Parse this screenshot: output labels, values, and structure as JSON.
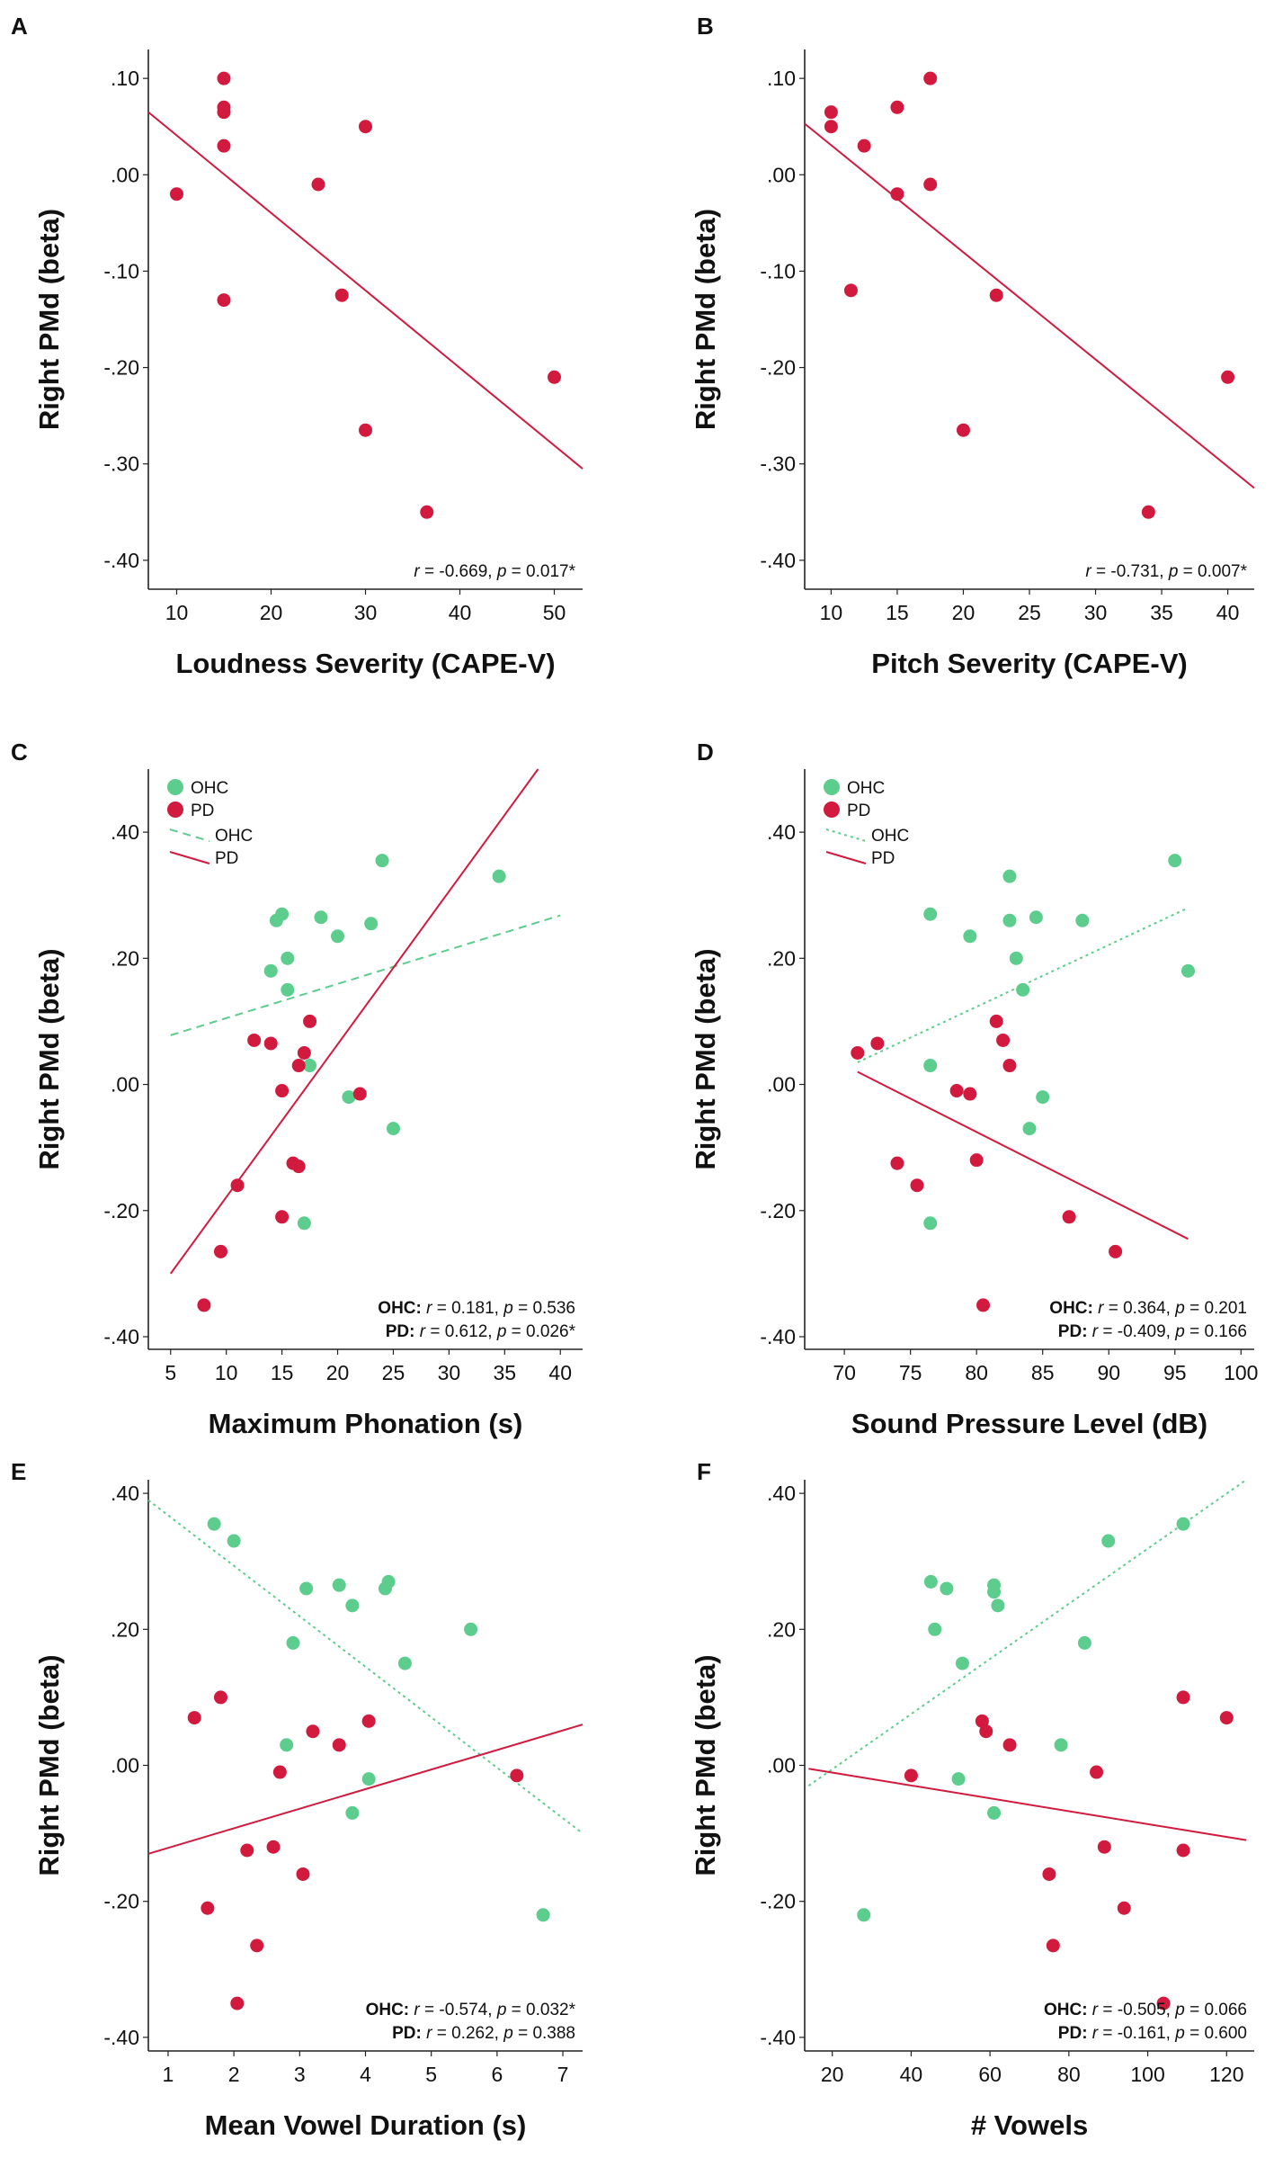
{
  "colors": {
    "pd": "#d11a3e",
    "ohc": "#5ccd8c",
    "axis": "#222222"
  },
  "legend": {
    "ohc_dot": "OHC",
    "pd_dot": "PD",
    "ohc_line": "OHC",
    "pd_line": "PD"
  },
  "chart_data": [
    {
      "panel": "A",
      "type": "scatter",
      "xlabel": "Loudness Severity (CAPE-V)",
      "ylabel": "Right PMd (beta)",
      "xlim": [
        7,
        53
      ],
      "ylim": [
        -0.43,
        0.13
      ],
      "xticks": [
        10,
        20,
        30,
        40,
        50
      ],
      "xtick_labels": [
        "10",
        "20",
        "30",
        "40",
        "50"
      ],
      "yticks": [
        0.1,
        0.0,
        -0.1,
        -0.2,
        -0.3,
        -0.4
      ],
      "ytick_labels": [
        ".10",
        ".00",
        "-.10",
        "-.20",
        "-.30",
        "-.40"
      ],
      "legend": false,
      "series": [
        {
          "name": "PD",
          "color": "pd",
          "points": [
            [
              10,
              -0.02
            ],
            [
              15,
              0.1
            ],
            [
              15,
              0.07
            ],
            [
              15,
              0.065
            ],
            [
              15,
              0.03
            ],
            [
              15,
              -0.13
            ],
            [
              25,
              -0.01
            ],
            [
              27.5,
              -0.125
            ],
            [
              30,
              0.05
            ],
            [
              30,
              -0.265
            ],
            [
              36.5,
              -0.35
            ],
            [
              50,
              -0.21
            ]
          ],
          "fit": [
            [
              7,
              0.065
            ],
            [
              53,
              -0.305
            ]
          ],
          "dash": ""
        }
      ],
      "stats": [
        {
          "group": "",
          "r": "-0.669",
          "p": "0.017*"
        }
      ]
    },
    {
      "panel": "B",
      "type": "scatter",
      "xlabel": "Pitch Severity (CAPE-V)",
      "ylabel": "Right PMd (beta)",
      "xlim": [
        8,
        42
      ],
      "ylim": [
        -0.43,
        0.13
      ],
      "xticks": [
        10,
        15,
        20,
        25,
        30,
        35,
        40
      ],
      "xtick_labels": [
        "10",
        "15",
        "20",
        "25",
        "30",
        "35",
        "40"
      ],
      "yticks": [
        0.1,
        0.0,
        -0.1,
        -0.2,
        -0.3,
        -0.4
      ],
      "ytick_labels": [
        ".10",
        ".00",
        "-.10",
        "-.20",
        "-.30",
        "-.40"
      ],
      "legend": false,
      "series": [
        {
          "name": "PD",
          "color": "pd",
          "points": [
            [
              10,
              0.065
            ],
            [
              10,
              0.05
            ],
            [
              11.5,
              -0.12
            ],
            [
              12.5,
              0.03
            ],
            [
              15,
              0.07
            ],
            [
              15,
              -0.02
            ],
            [
              17.5,
              0.1
            ],
            [
              17.5,
              -0.01
            ],
            [
              20,
              -0.265
            ],
            [
              22.5,
              -0.125
            ],
            [
              34,
              -0.35
            ],
            [
              40,
              -0.21
            ]
          ],
          "fit": [
            [
              8,
              0.053
            ],
            [
              42,
              -0.325
            ]
          ],
          "dash": ""
        }
      ],
      "stats": [
        {
          "group": "",
          "r": "-0.731",
          "p": "0.007*"
        }
      ]
    },
    {
      "panel": "C",
      "type": "scatter",
      "xlabel": "Maximum Phonation (s)",
      "ylabel": "Right PMd (beta)",
      "xlim": [
        3,
        42
      ],
      "ylim": [
        -0.42,
        0.5
      ],
      "xticks": [
        5,
        10,
        15,
        20,
        25,
        30,
        35,
        40
      ],
      "xtick_labels": [
        "5",
        "10",
        "15",
        "20",
        "25",
        "30",
        "35",
        "40"
      ],
      "yticks": [
        0.4,
        0.2,
        0.0,
        -0.2,
        -0.4
      ],
      "ytick_labels": [
        ".40",
        ".20",
        ".00",
        "-.20",
        "-.40"
      ],
      "legend": true,
      "series": [
        {
          "name": "OHC",
          "color": "ohc",
          "points": [
            [
              14,
              0.18
            ],
            [
              14.5,
              0.26
            ],
            [
              15,
              0.27
            ],
            [
              15.5,
              0.15
            ],
            [
              15.5,
              0.2
            ],
            [
              17,
              -0.22
            ],
            [
              17.5,
              0.03
            ],
            [
              18.5,
              0.265
            ],
            [
              20,
              0.235
            ],
            [
              21,
              -0.02
            ],
            [
              23,
              0.255
            ],
            [
              24,
              0.355
            ],
            [
              25,
              -0.07
            ],
            [
              34.5,
              0.33
            ]
          ],
          "fit": [
            [
              5,
              0.078
            ],
            [
              40,
              0.268
            ]
          ],
          "dash": "9,6"
        },
        {
          "name": "PD",
          "color": "pd",
          "points": [
            [
              8,
              -0.35
            ],
            [
              9.5,
              -0.265
            ],
            [
              11,
              -0.16
            ],
            [
              12.5,
              0.07
            ],
            [
              14,
              0.065
            ],
            [
              15,
              -0.01
            ],
            [
              15,
              -0.21
            ],
            [
              16,
              -0.125
            ],
            [
              16.5,
              -0.13
            ],
            [
              16.5,
              0.03
            ],
            [
              17,
              0.05
            ],
            [
              17.5,
              0.1
            ],
            [
              22,
              -0.015
            ]
          ],
          "fit": [
            [
              5,
              -0.3
            ],
            [
              38,
              0.5
            ]
          ],
          "dash": ""
        }
      ],
      "stats": [
        {
          "group": "OHC:",
          "r": "0.181",
          "p": "0.536"
        },
        {
          "group": "PD:",
          "r": "0.612",
          "p": "0.026*"
        }
      ]
    },
    {
      "panel": "D",
      "type": "scatter",
      "xlabel": "Sound Pressure Level (dB)",
      "ylabel": "Right PMd (beta)",
      "xlim": [
        67,
        101
      ],
      "ylim": [
        -0.42,
        0.5
      ],
      "xticks": [
        70,
        75,
        80,
        85,
        90,
        95,
        100
      ],
      "xtick_labels": [
        "70",
        "75",
        "80",
        "85",
        "90",
        "95",
        "100"
      ],
      "yticks": [
        0.4,
        0.2,
        0.0,
        -0.2,
        -0.4
      ],
      "ytick_labels": [
        ".40",
        ".20",
        ".00",
        "-.20",
        "-.40"
      ],
      "legend": true,
      "series": [
        {
          "name": "OHC",
          "color": "ohc",
          "points": [
            [
              76.5,
              0.27
            ],
            [
              76.5,
              0.03
            ],
            [
              76.5,
              -0.22
            ],
            [
              79.5,
              0.235
            ],
            [
              82.5,
              0.33
            ],
            [
              82.5,
              0.26
            ],
            [
              83,
              0.2
            ],
            [
              83.5,
              0.15
            ],
            [
              84,
              -0.07
            ],
            [
              84.5,
              0.265
            ],
            [
              85,
              -0.02
            ],
            [
              88,
              0.26
            ],
            [
              95,
              0.355
            ],
            [
              96,
              0.18
            ]
          ],
          "fit": [
            [
              71,
              0.035
            ],
            [
              96,
              0.28
            ]
          ],
          "dash": "3,4"
        },
        {
          "name": "PD",
          "color": "pd",
          "points": [
            [
              71,
              0.05
            ],
            [
              72.5,
              0.065
            ],
            [
              74,
              -0.125
            ],
            [
              75.5,
              -0.16
            ],
            [
              78.5,
              -0.01
            ],
            [
              79.5,
              -0.015
            ],
            [
              80,
              -0.12
            ],
            [
              80.5,
              -0.35
            ],
            [
              81.5,
              0.1
            ],
            [
              82,
              0.07
            ],
            [
              82.5,
              0.03
            ],
            [
              87,
              -0.21
            ],
            [
              90.5,
              -0.265
            ]
          ],
          "fit": [
            [
              71,
              0.02
            ],
            [
              96,
              -0.245
            ]
          ],
          "dash": ""
        }
      ],
      "stats": [
        {
          "group": "OHC:",
          "r": "0.364",
          "p": "0.201"
        },
        {
          "group": "PD:",
          "r": "-0.409",
          "p": "0.166"
        }
      ]
    },
    {
      "panel": "E",
      "type": "scatter",
      "xlabel": "Mean Vowel Duration (s)",
      "ylabel": "Right PMd (beta)",
      "xlim": [
        0.7,
        7.3
      ],
      "ylim": [
        -0.42,
        0.42
      ],
      "xticks": [
        1,
        2,
        3,
        4,
        5,
        6,
        7
      ],
      "xtick_labels": [
        "1",
        "2",
        "3",
        "4",
        "5",
        "6",
        "7"
      ],
      "yticks": [
        0.4,
        0.2,
        0.0,
        -0.2,
        -0.4
      ],
      "ytick_labels": [
        ".40",
        ".20",
        ".00",
        "-.20",
        "-.40"
      ],
      "legend": false,
      "series": [
        {
          "name": "OHC",
          "color": "ohc",
          "points": [
            [
              1.7,
              0.355
            ],
            [
              2,
              0.33
            ],
            [
              2.8,
              0.03
            ],
            [
              2.9,
              0.18
            ],
            [
              3.1,
              0.26
            ],
            [
              3.6,
              0.265
            ],
            [
              3.8,
              0.235
            ],
            [
              3.8,
              -0.07
            ],
            [
              4.05,
              -0.02
            ],
            [
              4.3,
              0.26
            ],
            [
              4.35,
              0.27
            ],
            [
              4.6,
              0.15
            ],
            [
              5.6,
              0.2
            ],
            [
              6.7,
              -0.22
            ]
          ],
          "fit": [
            [
              0.7,
              0.39
            ],
            [
              7.3,
              -0.1
            ]
          ],
          "dash": "3,4"
        },
        {
          "name": "PD",
          "color": "pd",
          "points": [
            [
              1.4,
              0.07
            ],
            [
              1.6,
              -0.21
            ],
            [
              1.8,
              0.1
            ],
            [
              2.05,
              -0.35
            ],
            [
              2.2,
              -0.125
            ],
            [
              2.35,
              -0.265
            ],
            [
              2.6,
              -0.12
            ],
            [
              2.7,
              -0.01
            ],
            [
              3.05,
              -0.16
            ],
            [
              3.2,
              0.05
            ],
            [
              3.6,
              0.03
            ],
            [
              4.05,
              0.065
            ],
            [
              6.3,
              -0.015
            ]
          ],
          "fit": [
            [
              0.7,
              -0.13
            ],
            [
              7.3,
              0.06
            ]
          ],
          "dash": ""
        }
      ],
      "stats": [
        {
          "group": "OHC:",
          "r": "-0.574",
          "p": "0.032*"
        },
        {
          "group": "PD:",
          "r": "0.262",
          "p": "0.388"
        }
      ]
    },
    {
      "panel": "F",
      "type": "scatter",
      "xlabel": "# Vowels",
      "ylabel": "Right PMd (beta)",
      "xlim": [
        13,
        127
      ],
      "ylim": [
        -0.42,
        0.42
      ],
      "xticks": [
        20,
        40,
        60,
        80,
        100,
        120
      ],
      "xtick_labels": [
        "20",
        "40",
        "60",
        "80",
        "100",
        "120"
      ],
      "yticks": [
        0.4,
        0.2,
        0.0,
        -0.2,
        -0.4
      ],
      "ytick_labels": [
        ".40",
        ".20",
        ".00",
        "-.20",
        "-.40"
      ],
      "legend": false,
      "series": [
        {
          "name": "OHC",
          "color": "ohc",
          "points": [
            [
              28,
              -0.22
            ],
            [
              45,
              0.27
            ],
            [
              46,
              0.2
            ],
            [
              49,
              0.26
            ],
            [
              52,
              -0.02
            ],
            [
              53,
              0.15
            ],
            [
              61,
              0.265
            ],
            [
              61,
              0.255
            ],
            [
              61,
              -0.07
            ],
            [
              62,
              0.235
            ],
            [
              78,
              0.03
            ],
            [
              84,
              0.18
            ],
            [
              90,
              0.33
            ],
            [
              109,
              0.355
            ]
          ],
          "fit": [
            [
              14,
              -0.03
            ],
            [
              125,
              0.42
            ]
          ],
          "dash": "3,4"
        },
        {
          "name": "PD",
          "color": "pd",
          "points": [
            [
              40,
              -0.015
            ],
            [
              58,
              0.065
            ],
            [
              59,
              0.05
            ],
            [
              65,
              0.03
            ],
            [
              75,
              -0.16
            ],
            [
              76,
              -0.265
            ],
            [
              87,
              -0.01
            ],
            [
              89,
              -0.12
            ],
            [
              94,
              -0.21
            ],
            [
              104,
              -0.35
            ],
            [
              109,
              0.1
            ],
            [
              109,
              -0.125
            ],
            [
              120,
              0.07
            ]
          ],
          "fit": [
            [
              14,
              -0.005
            ],
            [
              125,
              -0.11
            ]
          ],
          "dash": ""
        }
      ],
      "stats": [
        {
          "group": "OHC:",
          "r": "-0.505",
          "p": "0.066"
        },
        {
          "group": "PD:",
          "r": "-0.161",
          "p": "0.600"
        }
      ]
    }
  ]
}
